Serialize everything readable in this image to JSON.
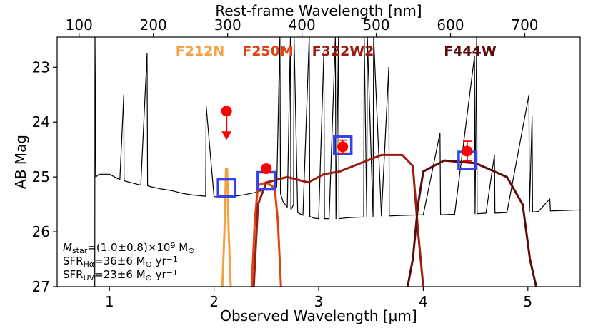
{
  "chart_data": {
    "type": "line",
    "x_label": "Observed Wavelength [µm]",
    "x2_label": "Rest-frame Wavelength [nm]",
    "y_label": "AB Mag",
    "xlim": [
      0.5,
      5.5
    ],
    "xticks": [
      1,
      2,
      3,
      4,
      5
    ],
    "x2lim": [
      70.4,
      774.6
    ],
    "x2ticks": [
      100,
      200,
      300,
      400,
      500,
      600,
      700
    ],
    "ylim": [
      27,
      22.45
    ],
    "yticks": [
      23,
      24,
      25,
      26,
      27
    ],
    "series": [
      {
        "color": "#000000",
        "width": 1.2,
        "x": [
          0.86,
          0.862,
          0.87,
          0.9,
          1.0,
          1.1,
          1.137,
          1.14,
          1.2,
          1.3,
          1.36,
          1.365,
          1.4,
          1.5,
          1.6,
          1.7,
          1.8,
          1.92,
          1.925,
          2.0,
          2.1,
          2.2,
          2.3,
          2.4,
          2.5,
          2.55,
          2.6,
          2.63,
          2.635,
          2.66,
          2.7,
          2.73,
          2.735,
          2.76,
          2.765,
          2.8,
          2.85,
          2.91,
          2.915,
          2.95,
          3.0,
          3.05,
          3.055,
          3.1,
          3.16,
          3.165,
          3.19,
          3.195,
          3.25,
          3.3,
          3.43,
          3.435,
          3.46,
          3.465,
          3.52,
          3.525,
          3.6,
          3.67,
          3.675,
          3.8,
          4.0,
          4.16,
          4.165,
          4.3,
          4.49,
          4.495,
          4.51,
          4.515,
          4.6,
          4.68,
          4.685,
          4.8,
          5.01,
          5.015,
          5.04,
          5.045,
          5.1,
          5.21,
          5.215,
          5.35,
          5.5
        ],
        "values": [
          27,
          22.45,
          25.0,
          24.95,
          24.95,
          25.05,
          23.5,
          25.07,
          25.1,
          25.15,
          22.75,
          25.16,
          25.18,
          25.22,
          25.25,
          25.3,
          25.33,
          25.35,
          23.7,
          25.36,
          25.36,
          25.35,
          25.32,
          25.28,
          25.22,
          25.2,
          25.18,
          22.45,
          25.3,
          25.45,
          25.55,
          22.45,
          25.6,
          25.5,
          22.45,
          25.65,
          25.7,
          22.45,
          25.72,
          25.75,
          25.76,
          22.7,
          25.76,
          25.76,
          22.45,
          25.76,
          22.45,
          25.76,
          25.75,
          25.74,
          25.73,
          22.45,
          25.73,
          22.45,
          25.72,
          22.45,
          25.71,
          23.0,
          25.71,
          25.7,
          25.69,
          24.2,
          25.69,
          25.68,
          22.8,
          25.67,
          22.45,
          25.67,
          25.66,
          24.6,
          25.66,
          25.65,
          23.5,
          25.64,
          23.9,
          25.64,
          25.63,
          25.4,
          25.62,
          25.61,
          25.6
        ]
      },
      {
        "name": "F212N",
        "color": "#f5a040",
        "width": 3,
        "x": [
          2.08,
          2.1,
          2.115,
          2.125,
          2.14,
          2.16
        ],
        "values": [
          27,
          26.0,
          24.85,
          24.85,
          26.0,
          27
        ]
      },
      {
        "name": "F250M",
        "color": "#dd4411",
        "width": 3,
        "x": [
          2.36,
          2.39,
          2.42,
          2.5,
          2.58,
          2.61,
          2.64
        ],
        "values": [
          27,
          25.8,
          25.15,
          25.1,
          25.2,
          25.8,
          27
        ]
      },
      {
        "name": "F322W2",
        "color": "#9b1b10",
        "width": 3,
        "x": [
          2.38,
          2.42,
          2.5,
          2.7,
          2.9,
          3.05,
          3.2,
          3.4,
          3.6,
          3.8,
          3.9,
          3.95,
          4.0
        ],
        "values": [
          27,
          25.5,
          25.1,
          25.0,
          25.1,
          24.95,
          24.9,
          24.75,
          24.6,
          24.6,
          24.8,
          26.0,
          27
        ]
      },
      {
        "name": "F444W",
        "color": "#5c0a0a",
        "width": 3,
        "x": [
          3.85,
          3.9,
          3.95,
          4.0,
          4.2,
          4.5,
          4.8,
          4.95,
          5.02,
          5.08
        ],
        "values": [
          27,
          26.5,
          25.5,
          24.9,
          24.7,
          24.75,
          25.0,
          25.5,
          26.5,
          27
        ]
      }
    ],
    "photometry": {
      "color": "#ff0000",
      "x": [
        2.12,
        2.5,
        3.23,
        4.42
      ],
      "values": [
        23.8,
        24.85,
        24.45,
        24.53
      ],
      "errors": [
        0.5,
        0.07,
        0.12,
        0.18
      ],
      "upper_limit": [
        true,
        false,
        false,
        false
      ]
    },
    "model": {
      "color": "#3344ee",
      "x": [
        2.12,
        2.5,
        3.23,
        4.42
      ],
      "values": [
        25.2,
        25.07,
        24.42,
        24.7
      ]
    },
    "annotations": [
      [
        {
          "text": "M",
          "style": "italic"
        },
        {
          "text": "star",
          "style": "sub"
        },
        {
          "text": "=(1.0±0.8)×10",
          "style": "normal"
        },
        {
          "text": "9",
          "style": "sup"
        },
        {
          "text": " M",
          "style": "normal"
        },
        {
          "text": "⊙",
          "style": "sub"
        }
      ],
      [
        {
          "text": "SFR",
          "style": "normal"
        },
        {
          "text": "Hα",
          "style": "sub"
        },
        {
          "text": "=36±6 M",
          "style": "normal"
        },
        {
          "text": "⊙",
          "style": "sub"
        },
        {
          "text": " yr",
          "style": "normal"
        },
        {
          "text": "−1",
          "style": "sup"
        }
      ],
      [
        {
          "text": "SFR",
          "style": "normal"
        },
        {
          "text": "UV",
          "style": "sub"
        },
        {
          "text": "=23±6 M",
          "style": "normal"
        },
        {
          "text": "⊙",
          "style": "sub"
        },
        {
          "text": " yr",
          "style": "normal"
        },
        {
          "text": "−1",
          "style": "sup"
        }
      ]
    ]
  }
}
